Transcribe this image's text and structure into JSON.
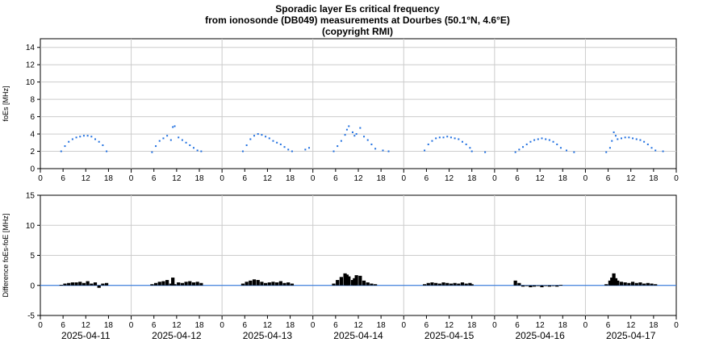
{
  "figure": {
    "title_lines": [
      "Sporadic layer Es critical frequency",
      "from ionosonde (DB049) measurements at Dourbes (50.1°N, 4.6°E)",
      "(copyright RMI)"
    ]
  },
  "colors": {
    "points": "#1f6fe0",
    "diff": "#000000",
    "zero_line": "#1f6fe0",
    "grid": "#cccccc"
  },
  "chart_data": [
    {
      "type": "scatter",
      "ylabel": "foEs [MHz]",
      "ylim": [
        0,
        15
      ],
      "yticks": [
        0,
        2,
        4,
        6,
        8,
        10,
        12,
        14
      ],
      "xlim": [
        0,
        168
      ],
      "grid": true,
      "x_unit": "hours since 2025-04-11 00:00",
      "xtick_labels": [
        "0",
        "6",
        "12",
        "18",
        "0",
        "6",
        "12",
        "18",
        "0",
        "6",
        "12",
        "18",
        "0",
        "6",
        "12",
        "18",
        "0",
        "6",
        "12",
        "18",
        "0",
        "6",
        "12",
        "18",
        "0",
        "6",
        "12",
        "18",
        "0"
      ],
      "series": [
        {
          "x": [
            5.5,
            6.5,
            7.5,
            8.5,
            9.5,
            10.5,
            11.5,
            12.5,
            13.5,
            14.5,
            15.5,
            16.5,
            17.5,
            29.5,
            30.5,
            31.5,
            32.5,
            33.5,
            34.5,
            35.0,
            35.5,
            36.5,
            37.5,
            38.5,
            39.5,
            40.5,
            41.5,
            42.5,
            53.5,
            54.5,
            55.5,
            56.5,
            57.5,
            58.5,
            59.5,
            60.5,
            61.5,
            62.5,
            63.5,
            64.5,
            65.5,
            66.5,
            70.0,
            71.0,
            77.5,
            78.5,
            79.5,
            80.5,
            81.0,
            81.5,
            82.5,
            83.0,
            83.5,
            84.5,
            85.5,
            86.5,
            87.5,
            88.5,
            90.5,
            92.0,
            101.5,
            102.5,
            103.5,
            104.5,
            105.5,
            106.5,
            107.5,
            108.5,
            109.5,
            110.5,
            111.5,
            112.5,
            113.5,
            114.0,
            117.5,
            125.5,
            126.5,
            127.5,
            128.5,
            129.5,
            130.5,
            131.5,
            132.5,
            133.5,
            134.5,
            135.5,
            136.5,
            137.5,
            139.0,
            141.0,
            149.5,
            150.5,
            151.0,
            151.5,
            152.0,
            152.5,
            153.5,
            154.5,
            155.5,
            156.5,
            157.5,
            158.5,
            159.5,
            160.5,
            161.5,
            162.5,
            164.5
          ],
          "y": [
            2.0,
            2.6,
            3.1,
            3.4,
            3.6,
            3.7,
            3.8,
            3.8,
            3.7,
            3.4,
            3.1,
            2.7,
            2.0,
            1.9,
            2.6,
            3.2,
            3.5,
            3.8,
            3.3,
            4.8,
            4.9,
            3.6,
            3.3,
            3.0,
            2.7,
            2.4,
            2.1,
            2.0,
            2.0,
            2.7,
            3.4,
            3.8,
            4.0,
            3.9,
            3.7,
            3.5,
            3.2,
            3.0,
            2.8,
            2.5,
            2.2,
            2.0,
            2.2,
            2.4,
            2.0,
            2.6,
            3.2,
            3.9,
            4.5,
            4.9,
            4.2,
            3.8,
            4.0,
            4.7,
            3.7,
            3.3,
            2.8,
            2.3,
            2.1,
            2.0,
            2.1,
            2.8,
            3.2,
            3.5,
            3.6,
            3.6,
            3.7,
            3.6,
            3.5,
            3.4,
            3.1,
            2.8,
            2.4,
            2.0,
            1.9,
            1.9,
            2.2,
            2.5,
            2.8,
            3.1,
            3.3,
            3.4,
            3.5,
            3.4,
            3.3,
            3.1,
            2.8,
            2.4,
            2.1,
            1.9,
            1.9,
            2.4,
            3.2,
            4.2,
            3.8,
            3.4,
            3.5,
            3.6,
            3.6,
            3.5,
            3.4,
            3.3,
            3.1,
            2.8,
            2.4,
            2.1,
            2.0
          ]
        }
      ]
    },
    {
      "type": "bar",
      "ylabel": "Difference foEs-foE [MHz]",
      "ylim": [
        -5,
        15
      ],
      "yticks": [
        -5,
        0,
        5,
        10,
        15
      ],
      "xlim": [
        0,
        168
      ],
      "grid": true,
      "x_unit": "hours since 2025-04-11 00:00",
      "xtick_labels": [
        "0",
        "6",
        "12",
        "18",
        "0",
        "6",
        "12",
        "18",
        "0",
        "6",
        "12",
        "18",
        "0",
        "6",
        "12",
        "18",
        "0",
        "6",
        "12",
        "18",
        "0",
        "6",
        "12",
        "18",
        "0",
        "6",
        "12",
        "18",
        "0"
      ],
      "date_labels": [
        "2025-04-11",
        "2025-04-12",
        "2025-04-13",
        "2025-04-14",
        "2025-04-15",
        "2025-04-16",
        "2025-04-17"
      ],
      "series": [
        {
          "x": [
            5.5,
            6.5,
            7.5,
            8.5,
            9.5,
            10.5,
            11.5,
            12.5,
            13.5,
            14.5,
            15.5,
            16.5,
            17.5,
            29.5,
            30.5,
            31.5,
            32.5,
            33.5,
            34.5,
            35.0,
            35.5,
            36.5,
            37.5,
            38.5,
            39.5,
            40.5,
            41.5,
            42.5,
            53.5,
            54.5,
            55.5,
            56.5,
            57.5,
            58.5,
            59.5,
            60.5,
            61.5,
            62.5,
            63.5,
            64.5,
            65.5,
            66.5,
            77.5,
            78.5,
            79.5,
            80.5,
            81.0,
            81.5,
            82.5,
            83.0,
            83.5,
            84.5,
            85.5,
            86.5,
            87.5,
            88.5,
            101.5,
            102.5,
            103.5,
            104.5,
            105.5,
            106.5,
            107.5,
            108.5,
            109.5,
            110.5,
            111.5,
            112.5,
            113.5,
            114.0,
            125.5,
            126.5,
            127.5,
            128.5,
            129.5,
            130.5,
            131.5,
            132.5,
            133.5,
            134.5,
            135.5,
            136.5,
            137.5,
            149.5,
            150.5,
            151.0,
            151.5,
            152.0,
            152.5,
            153.5,
            154.5,
            155.5,
            156.5,
            157.5,
            158.5,
            159.5,
            160.5,
            161.5,
            162.5
          ],
          "y": [
            0.1,
            0.3,
            0.4,
            0.5,
            0.5,
            0.6,
            0.4,
            0.7,
            0.3,
            0.5,
            -0.4,
            0.3,
            0.4,
            0.2,
            0.4,
            0.6,
            0.7,
            0.9,
            0.3,
            1.3,
            0.2,
            0.5,
            0.4,
            0.6,
            0.7,
            0.5,
            0.6,
            0.4,
            0.3,
            0.6,
            0.8,
            1.0,
            0.9,
            0.6,
            0.4,
            0.5,
            0.6,
            0.5,
            0.7,
            0.4,
            0.5,
            0.3,
            0.3,
            0.9,
            1.4,
            2.0,
            1.8,
            1.5,
            0.9,
            1.2,
            1.7,
            1.6,
            0.8,
            0.5,
            0.3,
            0.2,
            0.2,
            0.4,
            0.5,
            0.4,
            0.3,
            0.5,
            0.4,
            0.3,
            0.4,
            0.3,
            0.5,
            0.3,
            0.4,
            0.2,
            0.8,
            0.4,
            -0.2,
            -0.1,
            -0.3,
            -0.2,
            -0.1,
            -0.3,
            -0.1,
            -0.2,
            -0.1,
            -0.2,
            0.1,
            0.2,
            0.8,
            1.3,
            2.0,
            1.2,
            0.8,
            0.6,
            0.5,
            0.4,
            0.6,
            0.4,
            0.5,
            0.3,
            0.4,
            0.3,
            0.2
          ]
        }
      ]
    }
  ]
}
